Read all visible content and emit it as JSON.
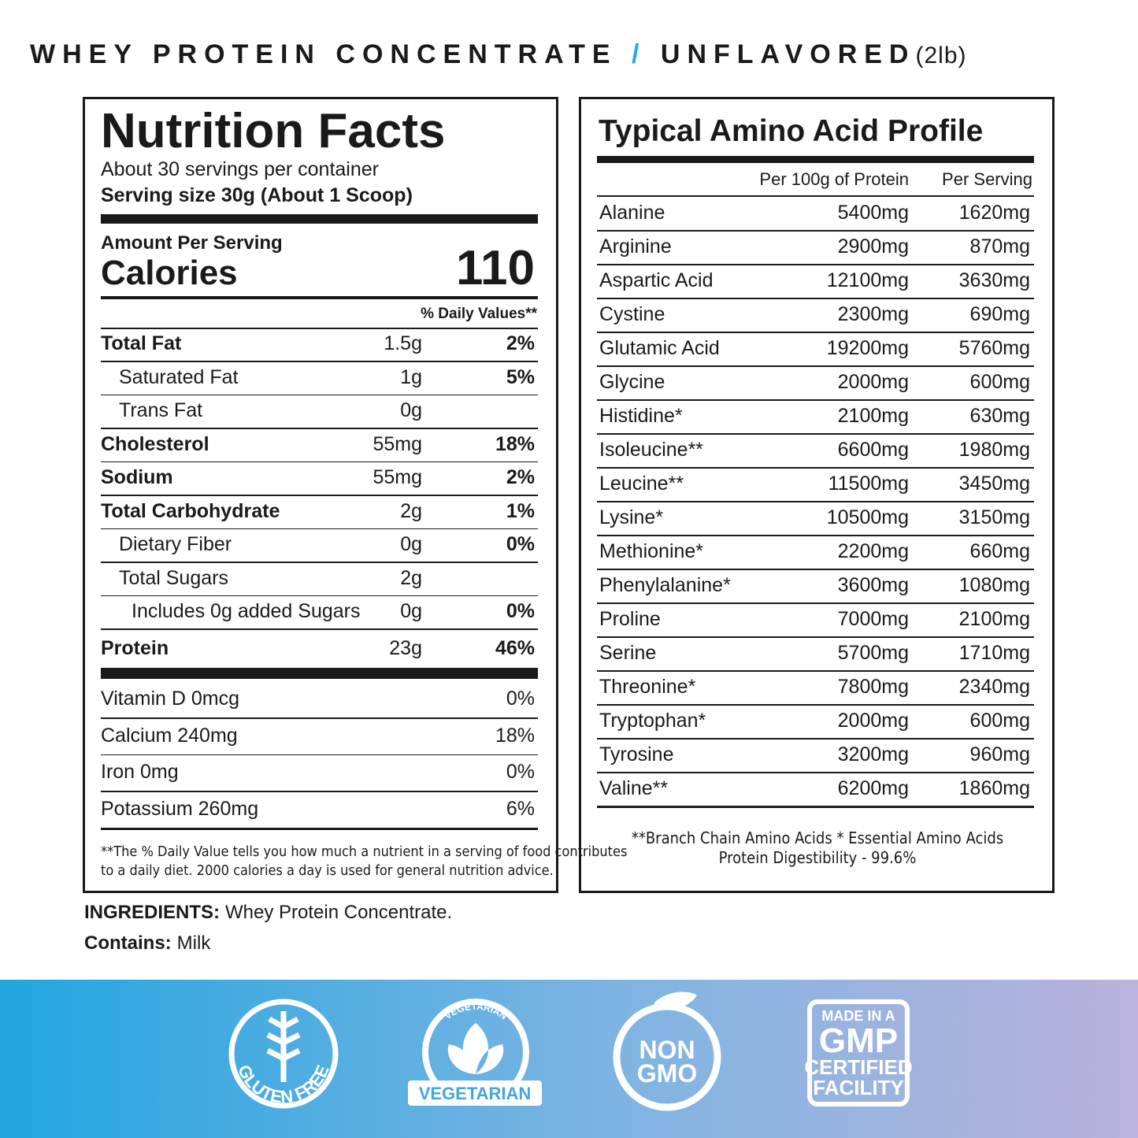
{
  "header": {
    "product": "WHEY PROTEIN CONCENTRATE",
    "slash": "/",
    "flavor": "UNFLAVORED",
    "size": "(2lb)"
  },
  "nutrition": {
    "title": "Nutrition Facts",
    "servings": "About 30 servings per container",
    "serving_size": "Serving size 30g (About 1 Scoop)",
    "amount_label": "Amount Per Serving",
    "calories_label": "Calories",
    "calories": 110,
    "dv_header": "% Daily Values**",
    "rows": [
      {
        "name": "Total Fat",
        "amount": "1.5g",
        "dv": "2%"
      },
      {
        "name": "Saturated Fat",
        "amount": "1g",
        "dv": "5%"
      },
      {
        "name": "Trans Fat",
        "amount": "0g"
      },
      {
        "name": "Cholesterol",
        "amount": "55mg",
        "dv": "18%"
      },
      {
        "name": "Sodium",
        "amount": "55mg",
        "dv": "2%"
      },
      {
        "name": "Total Carbohydrate",
        "amount": "2g",
        "dv": "1%"
      },
      {
        "name": "Dietary Fiber",
        "amount": "0g",
        "dv": "0%"
      },
      {
        "name": "Total Sugars",
        "amount": "2g"
      },
      {
        "name": "Includes 0g added Sugars",
        "amount": "0g",
        "dv": "0%"
      },
      {
        "name": "Protein",
        "amount": "23g",
        "dv": "46%"
      }
    ],
    "vitamins": [
      {
        "name": "Vitamin D 0mcg",
        "dv": "0%"
      },
      {
        "name": "Calcium 240mg",
        "dv": "18%"
      },
      {
        "name": "Iron 0mg",
        "dv": "0%"
      },
      {
        "name": "Potassium 260mg",
        "dv": "6%"
      }
    ],
    "footnote": [
      "**The % Daily Value tells you how much a nutrient in a  serving of food contributes",
      "to a daily diet. 2000 calories a day is used for general nutrition advice."
    ]
  },
  "amino": {
    "title": "Typical Amino Acid Profile",
    "columns": [
      "Per 100g of Protein",
      "Per Serving"
    ],
    "rows": [
      [
        "Alanine",
        "5400mg",
        "1620mg"
      ],
      [
        "Arginine",
        "2900mg",
        "870mg"
      ],
      [
        "Aspartic Acid",
        "12100mg",
        "3630mg"
      ],
      [
        "Cystine",
        "2300mg",
        "690mg"
      ],
      [
        "Glutamic Acid",
        "19200mg",
        "5760mg"
      ],
      [
        "Glycine",
        "2000mg",
        "600mg"
      ],
      [
        "Histidine*",
        "2100mg",
        "630mg"
      ],
      [
        "Isoleucine**",
        "6600mg",
        "1980mg"
      ],
      [
        "Leucine**",
        "11500mg",
        "3450mg"
      ],
      [
        "Lysine*",
        "10500mg",
        "3150mg"
      ],
      [
        "Methionine*",
        "2200mg",
        "660mg"
      ],
      [
        "Phenylalanine*",
        "3600mg",
        "1080mg"
      ],
      [
        "Proline",
        "7000mg",
        "2100mg"
      ],
      [
        "Serine",
        "5700mg",
        "1710mg"
      ],
      [
        "Threonine*",
        "7800mg",
        "2340mg"
      ],
      [
        "Tryptophan*",
        "2000mg",
        "600mg"
      ],
      [
        "Tyrosine",
        "3200mg",
        "960mg"
      ],
      [
        "Valine**",
        "6200mg",
        "1860mg"
      ]
    ],
    "footnote": "**Branch Chain Amino Acids    * Essential Amino Acids",
    "digestibility": "Protein Digestibility - 99.6%"
  },
  "ingredients": {
    "label": "INGREDIENTS:",
    "text": "Whey Protein Concentrate."
  },
  "contains": {
    "label": "Contains:",
    "text": "Milk"
  },
  "badges": {
    "gluten_free": "GLUTEN FREE",
    "vegetarian_arc": "VEGETARIAN",
    "vegetarian_banner": "VEGETARIAN",
    "non": "NON",
    "gmo": "GMO",
    "gmp": [
      "MADE IN A",
      "GMP",
      "CERTIFIED",
      "FACILITY"
    ]
  }
}
